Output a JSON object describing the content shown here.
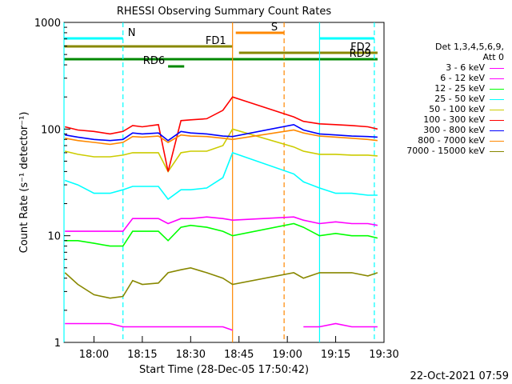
{
  "chart_data": {
    "type": "line",
    "title": "RHESSI Observing Summary Count Rates",
    "xlabel": "Start Time (28-Dec-05 17:50:42)",
    "ylabel": "Count Rate (s⁻¹ detector⁻¹)",
    "x_ticks": [
      "18:00",
      "18:15",
      "18:30",
      "18:45",
      "19:00",
      "19:15",
      "19:30"
    ],
    "y_ticks": [
      "1",
      "10",
      "100",
      "1000"
    ],
    "yscale": "log",
    "xlim": [
      "17:50:42",
      "19:30"
    ],
    "ylim": [
      1,
      1000
    ],
    "date_stamp": "22-Oct-2021 07:59",
    "legend": {
      "header": [
        "Det 1,3,4,5,6,9,",
        "Att 0"
      ],
      "placement": "right"
    },
    "series": [
      {
        "name": "3 - 6 keV",
        "color": "#ff00ff",
        "x": [
          "17:51",
          "17:55",
          "18:00",
          "18:05",
          "18:09",
          "18:12",
          "18:15",
          "18:20",
          "18:25",
          "18:30",
          "18:35",
          "18:40",
          "18:43",
          "19:02",
          "19:05",
          "19:10",
          "19:15",
          "19:20",
          "19:25",
          "19:28"
        ],
        "values": [
          1.5,
          1.5,
          1.5,
          1.5,
          1.4,
          1.4,
          1.4,
          1.4,
          1.4,
          1.4,
          1.4,
          1.4,
          1.3,
          null,
          1.4,
          1.4,
          1.5,
          1.4,
          1.4,
          1.4
        ]
      },
      {
        "name": "6 - 12 keV",
        "color": "#ff00ff",
        "x": [
          "17:51",
          "17:55",
          "18:00",
          "18:05",
          "18:09",
          "18:12",
          "18:15",
          "18:20",
          "18:23",
          "18:27",
          "18:30",
          "18:35",
          "18:40",
          "18:43",
          "19:02",
          "19:05",
          "19:10",
          "19:15",
          "19:20",
          "19:25",
          "19:28"
        ],
        "values": [
          11,
          11,
          11,
          11,
          11,
          14.5,
          14.5,
          14.5,
          13,
          14.5,
          14.5,
          15,
          14.5,
          14,
          15,
          14,
          13,
          13.5,
          13,
          13,
          12.5
        ]
      },
      {
        "name": "12 - 25 keV",
        "color": "#00ff00",
        "x": [
          "17:51",
          "17:55",
          "18:00",
          "18:05",
          "18:09",
          "18:12",
          "18:15",
          "18:20",
          "18:23",
          "18:27",
          "18:30",
          "18:35",
          "18:40",
          "18:43",
          "19:02",
          "19:05",
          "19:10",
          "19:15",
          "19:20",
          "19:25",
          "19:28"
        ],
        "values": [
          9,
          9,
          8.5,
          8,
          8,
          11,
          11,
          11,
          9,
          12,
          12.5,
          12,
          11,
          10,
          13,
          12,
          10,
          10.5,
          10,
          10,
          9.5
        ]
      },
      {
        "name": "25 - 50 keV",
        "color": "#00ffff",
        "x": [
          "17:51",
          "17:55",
          "18:00",
          "18:05",
          "18:09",
          "18:12",
          "18:15",
          "18:20",
          "18:23",
          "18:27",
          "18:30",
          "18:35",
          "18:40",
          "18:43",
          "19:02",
          "19:05",
          "19:10",
          "19:15",
          "19:20",
          "19:25",
          "19:28"
        ],
        "values": [
          33,
          30,
          25,
          25,
          27,
          29,
          29,
          29,
          22,
          27,
          27,
          28,
          35,
          60,
          38,
          32,
          28,
          25,
          25,
          24,
          24
        ]
      },
      {
        "name": "50 - 100 keV",
        "color": "#cccc00",
        "x": [
          "17:51",
          "17:55",
          "18:00",
          "18:05",
          "18:09",
          "18:12",
          "18:15",
          "18:20",
          "18:23",
          "18:27",
          "18:30",
          "18:35",
          "18:40",
          "18:43",
          "19:02",
          "19:05",
          "19:10",
          "19:15",
          "19:20",
          "19:25",
          "19:28"
        ],
        "values": [
          62,
          58,
          55,
          55,
          57,
          60,
          60,
          60,
          40,
          60,
          62,
          62,
          70,
          100,
          68,
          62,
          58,
          58,
          57,
          57,
          56
        ]
      },
      {
        "name": "100 - 300 keV",
        "color": "#ff0000",
        "x": [
          "17:51",
          "17:55",
          "18:00",
          "18:05",
          "18:09",
          "18:12",
          "18:15",
          "18:20",
          "18:23",
          "18:27",
          "18:30",
          "18:35",
          "18:40",
          "18:43",
          "19:02",
          "19:05",
          "19:10",
          "19:15",
          "19:20",
          "19:25",
          "19:28"
        ],
        "values": [
          105,
          98,
          95,
          90,
          95,
          108,
          105,
          110,
          40,
          120,
          122,
          125,
          150,
          200,
          130,
          118,
          112,
          110,
          108,
          105,
          100
        ]
      },
      {
        "name": "300 - 800 keV",
        "color": "#0000ff",
        "x": [
          "17:51",
          "17:55",
          "18:00",
          "18:05",
          "18:09",
          "18:12",
          "18:15",
          "18:20",
          "18:23",
          "18:27",
          "18:30",
          "18:35",
          "18:40",
          "18:43",
          "19:02",
          "19:05",
          "19:10",
          "19:15",
          "19:20",
          "19:25",
          "19:28"
        ],
        "values": [
          88,
          84,
          80,
          78,
          80,
          92,
          90,
          92,
          78,
          95,
          92,
          90,
          86,
          85,
          110,
          98,
          90,
          88,
          86,
          85,
          84
        ]
      },
      {
        "name": "800 - 7000 keV",
        "color": "#ff8800",
        "x": [
          "17:51",
          "17:55",
          "18:00",
          "18:05",
          "18:09",
          "18:12",
          "18:15",
          "18:20",
          "18:23",
          "18:27",
          "18:30",
          "18:35",
          "18:40",
          "18:43",
          "19:02",
          "19:05",
          "19:10",
          "19:15",
          "19:20",
          "19:25",
          "19:28"
        ],
        "values": [
          82,
          78,
          75,
          72,
          75,
          85,
          84,
          86,
          75,
          88,
          86,
          85,
          82,
          80,
          98,
          92,
          86,
          84,
          82,
          80,
          78
        ]
      },
      {
        "name": "7000 - 15000 keV",
        "color": "#888800",
        "x": [
          "17:51",
          "17:55",
          "18:00",
          "18:05",
          "18:09",
          "18:12",
          "18:15",
          "18:20",
          "18:23",
          "18:27",
          "18:30",
          "18:35",
          "18:40",
          "18:43",
          "19:02",
          "19:05",
          "19:10",
          "19:15",
          "19:20",
          "19:25",
          "19:28"
        ],
        "values": [
          4.5,
          3.5,
          2.8,
          2.6,
          2.7,
          3.8,
          3.5,
          3.6,
          4.5,
          4.8,
          5.0,
          4.5,
          4.0,
          3.5,
          4.5,
          4.0,
          4.5,
          4.5,
          4.5,
          4.2,
          4.5
        ]
      }
    ],
    "flag_bars": [
      {
        "label": "N",
        "color": "#00ffff",
        "segments": [
          [
            "17:50:42",
            "18:09"
          ],
          [
            "19:10",
            "19:27"
          ]
        ],
        "level": 1
      },
      {
        "label": "S",
        "color": "#ff8800",
        "segments": [
          [
            "18:44",
            "18:59"
          ]
        ],
        "level": 0
      },
      {
        "label": "FD1",
        "color": "#888800",
        "segments": [
          [
            "17:50:42",
            "18:43"
          ]
        ],
        "level": 2
      },
      {
        "label": "FD2",
        "color": "#888800",
        "segments": [
          [
            "18:45",
            "19:28"
          ]
        ],
        "level": 3
      },
      {
        "label": "RD9",
        "color": "#008800",
        "segments": [
          [
            "17:50:42",
            "19:28"
          ]
        ],
        "level": 4
      },
      {
        "label": "RD6",
        "color": "#008800",
        "segments": [
          [
            "18:23",
            "18:28"
          ]
        ],
        "level": 5
      }
    ],
    "vlines": [
      {
        "x": "17:50:42",
        "color": "#00ffff",
        "style": "solid"
      },
      {
        "x": "18:09",
        "color": "#00ffff",
        "style": "dashed"
      },
      {
        "x": "18:43",
        "color": "#ff8800",
        "style": "solid"
      },
      {
        "x": "18:59",
        "color": "#ff8800",
        "style": "dashed"
      },
      {
        "x": "19:10",
        "color": "#00ffff",
        "style": "solid"
      },
      {
        "x": "19:27",
        "color": "#00ffff",
        "style": "dashed"
      }
    ]
  }
}
